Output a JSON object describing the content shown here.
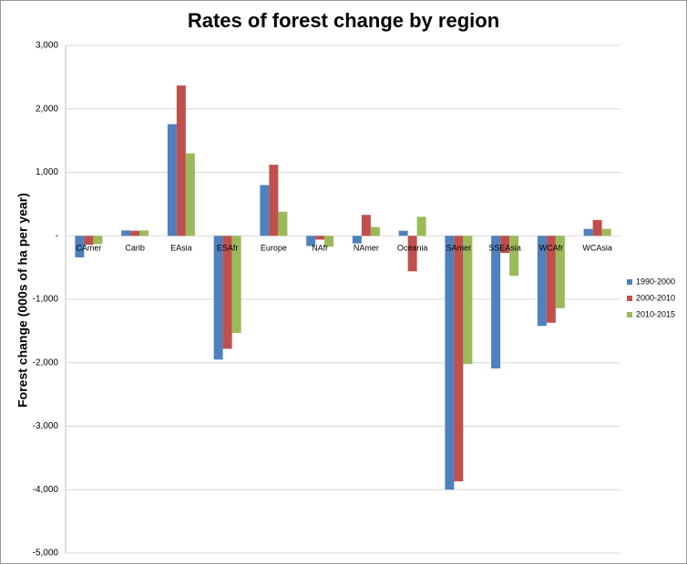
{
  "chart_data": {
    "type": "bar",
    "title": "Rates of forest change by region",
    "y_label": "Forest change (000s of ha per year)",
    "categories": [
      "CAmer",
      "Carib",
      "EAsia",
      "ESAfr",
      "Europe",
      "NAfr",
      "NAmer",
      "Oceania",
      "SAmer",
      "SSEAsia",
      "WCAfr",
      "WCAsia"
    ],
    "series": [
      {
        "name": "1990-2000",
        "color": "#4f81bd",
        "values": [
          -340,
          85,
          1760,
          -1950,
          800,
          -160,
          -120,
          80,
          -4000,
          -2090,
          -1420,
          110
        ]
      },
      {
        "name": "2000-2010",
        "color": "#c0504d",
        "values": [
          -140,
          80,
          2370,
          -1780,
          1120,
          -60,
          330,
          -560,
          -3870,
          -270,
          -1370,
          250
        ]
      },
      {
        "name": "2010-2015",
        "color": "#9bbb59",
        "values": [
          -130,
          85,
          1300,
          -1530,
          380,
          -170,
          140,
          300,
          -2020,
          -630,
          -1140,
          110
        ]
      }
    ],
    "ylim": [
      -5000,
      3000
    ],
    "yticks": [
      {
        "value": -5000,
        "label": "-5,000"
      },
      {
        "value": -4000,
        "label": "-4,000"
      },
      {
        "value": -3000,
        "label": "-3,000"
      },
      {
        "value": -2000,
        "label": "-2,000"
      },
      {
        "value": -1000,
        "label": "-1,000"
      },
      {
        "value": 0,
        "label": "-"
      },
      {
        "value": 1000,
        "label": "1,000"
      },
      {
        "value": 2000,
        "label": "2,000"
      },
      {
        "value": 3000,
        "label": "3,000"
      }
    ],
    "grid": true,
    "legend": "right"
  }
}
